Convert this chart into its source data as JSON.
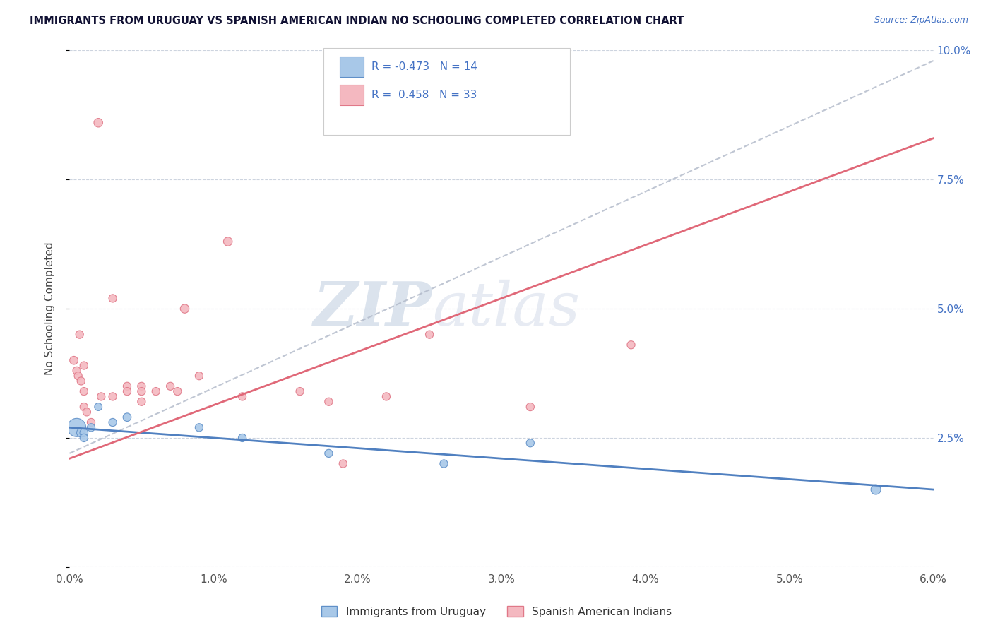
{
  "title": "IMMIGRANTS FROM URUGUAY VS SPANISH AMERICAN INDIAN NO SCHOOLING COMPLETED CORRELATION CHART",
  "source": "Source: ZipAtlas.com",
  "ylabel": "No Schooling Completed",
  "xlim": [
    0.0,
    0.06
  ],
  "ylim": [
    0.0,
    0.1
  ],
  "xtick_vals": [
    0.0,
    0.01,
    0.02,
    0.03,
    0.04,
    0.05,
    0.06
  ],
  "xtick_labels": [
    "0.0%",
    "1.0%",
    "2.0%",
    "3.0%",
    "4.0%",
    "5.0%",
    "6.0%"
  ],
  "ytick_vals": [
    0.0,
    0.025,
    0.05,
    0.075,
    0.1
  ],
  "ytick_right_labels": [
    "",
    "2.5%",
    "5.0%",
    "7.5%",
    "10.0%"
  ],
  "blue_color": "#a8c8e8",
  "pink_color": "#f4b8c0",
  "blue_edge": "#6090c8",
  "pink_edge": "#e07888",
  "blue_line_color": "#5080c0",
  "pink_line_color": "#e06878",
  "gray_line_color": "#b0b8c8",
  "blue_scatter": [
    [
      0.0005,
      0.027
    ],
    [
      0.0008,
      0.026
    ],
    [
      0.001,
      0.026
    ],
    [
      0.001,
      0.025
    ],
    [
      0.0015,
      0.027
    ],
    [
      0.002,
      0.031
    ],
    [
      0.003,
      0.028
    ],
    [
      0.004,
      0.029
    ],
    [
      0.009,
      0.027
    ],
    [
      0.012,
      0.025
    ],
    [
      0.018,
      0.022
    ],
    [
      0.026,
      0.02
    ],
    [
      0.032,
      0.024
    ],
    [
      0.056,
      0.015
    ]
  ],
  "blue_sizes": [
    350,
    80,
    70,
    65,
    65,
    60,
    65,
    70,
    65,
    65,
    65,
    65,
    65,
    100
  ],
  "pink_scatter": [
    [
      0.0003,
      0.04
    ],
    [
      0.0005,
      0.038
    ],
    [
      0.0006,
      0.037
    ],
    [
      0.0007,
      0.045
    ],
    [
      0.0008,
      0.036
    ],
    [
      0.001,
      0.034
    ],
    [
      0.001,
      0.031
    ],
    [
      0.001,
      0.039
    ],
    [
      0.0012,
      0.03
    ],
    [
      0.0015,
      0.028
    ],
    [
      0.002,
      0.086
    ],
    [
      0.0022,
      0.033
    ],
    [
      0.003,
      0.033
    ],
    [
      0.003,
      0.052
    ],
    [
      0.004,
      0.035
    ],
    [
      0.004,
      0.034
    ],
    [
      0.005,
      0.035
    ],
    [
      0.005,
      0.034
    ],
    [
      0.005,
      0.032
    ],
    [
      0.006,
      0.034
    ],
    [
      0.007,
      0.035
    ],
    [
      0.0075,
      0.034
    ],
    [
      0.008,
      0.05
    ],
    [
      0.009,
      0.037
    ],
    [
      0.011,
      0.063
    ],
    [
      0.012,
      0.033
    ],
    [
      0.016,
      0.034
    ],
    [
      0.018,
      0.032
    ],
    [
      0.019,
      0.02
    ],
    [
      0.022,
      0.033
    ],
    [
      0.025,
      0.045
    ],
    [
      0.032,
      0.031
    ],
    [
      0.039,
      0.043
    ]
  ],
  "pink_sizes": [
    70,
    65,
    65,
    65,
    65,
    65,
    65,
    65,
    65,
    65,
    80,
    65,
    65,
    65,
    65,
    65,
    65,
    65,
    65,
    65,
    65,
    65,
    80,
    65,
    80,
    65,
    65,
    65,
    65,
    65,
    65,
    65,
    65
  ],
  "blue_line": [
    0.0,
    0.027,
    0.06,
    0.015
  ],
  "pink_line": [
    0.0,
    0.021,
    0.06,
    0.083
  ],
  "gray_line": [
    0.0,
    0.022,
    0.06,
    0.098
  ],
  "watermark_zip": "ZIP",
  "watermark_atlas": "atlas",
  "legend_text1": "R = -0.473   N = 14",
  "legend_text2": "R =  0.458   N = 33"
}
